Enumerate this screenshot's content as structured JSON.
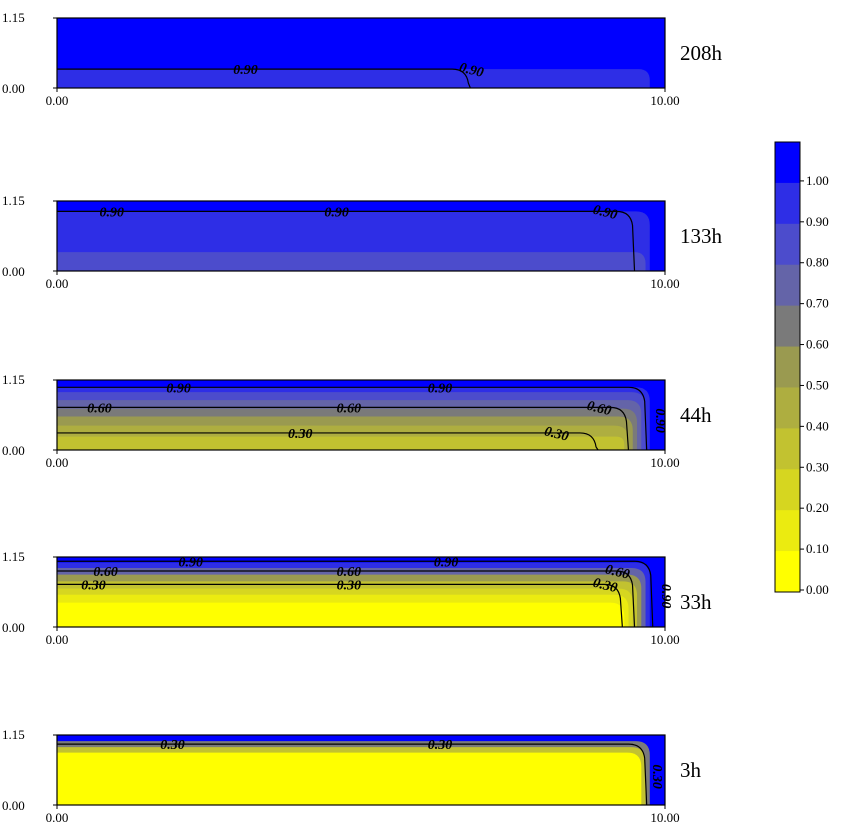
{
  "panel_axes": {
    "x_ticks": [
      "0.00",
      "10.00"
    ],
    "y_ticks": [
      "0.00",
      "1.15"
    ]
  },
  "legend": {
    "labels": [
      "1.00",
      "0.90",
      "0.80",
      "0.70",
      "0.60",
      "0.50",
      "0.40",
      "0.30",
      "0.20",
      "0.10",
      "0.00"
    ]
  },
  "colors": {
    "scale": [
      "#ffff00",
      "#ebeb10",
      "#d6d620",
      "#c2c230",
      "#aeae40",
      "#9a9a50",
      "#7a7a7a",
      "#6464a8",
      "#4c4ccc",
      "#2e2ee6",
      "#0000ff"
    ],
    "line": "#000000"
  },
  "chart_data": [
    {
      "type": "heatmap",
      "time_label": "208h",
      "xlim": [
        0,
        10
      ],
      "ylim": [
        0,
        1.15
      ],
      "bands": [
        {
          "level": 0.9,
          "y": 0.31
        },
        {
          "level": 1.0,
          "y": 1.15
        }
      ],
      "contours": [
        {
          "level": 0.9,
          "y": 0.31,
          "x_end": 6.7,
          "labels": [
            {
              "text": "0.90",
              "x": 3.1
            },
            {
              "text": "0.90",
              "x": 6.8,
              "slant": true
            }
          ]
        }
      ]
    },
    {
      "type": "heatmap",
      "time_label": "133h",
      "xlim": [
        0,
        10
      ],
      "ylim": [
        0,
        1.15
      ],
      "bands": [
        {
          "level": 0.8,
          "y": 0.31
        },
        {
          "level": 0.9,
          "y": 0.98
        },
        {
          "level": 1.0,
          "y": 1.15
        }
      ],
      "contours": [
        {
          "level": 0.9,
          "y": 0.98,
          "x_end": 9.4,
          "labels": [
            {
              "text": "0.90",
              "x": 0.9
            },
            {
              "text": "0.90",
              "x": 4.6
            },
            {
              "text": "0.90",
              "x": 9.0,
              "slant": true
            }
          ]
        }
      ]
    },
    {
      "type": "heatmap",
      "time_label": "44h",
      "xlim": [
        0,
        10
      ],
      "ylim": [
        0,
        1.15
      ],
      "bands": [
        {
          "level": 0.3,
          "y": 0.22
        },
        {
          "level": 0.4,
          "y": 0.4
        },
        {
          "level": 0.5,
          "y": 0.55
        },
        {
          "level": 0.6,
          "y": 0.68
        },
        {
          "level": 0.7,
          "y": 0.82
        },
        {
          "level": 0.8,
          "y": 0.95
        },
        {
          "level": 0.9,
          "y": 1.03
        },
        {
          "level": 1.0,
          "y": 1.15
        }
      ],
      "contours": [
        {
          "level": 0.9,
          "y": 1.03,
          "x_end": 9.6,
          "labels": [
            {
              "text": "0.90",
              "x": 2.0
            },
            {
              "text": "0.90",
              "x": 6.3
            },
            {
              "text": "0.90",
              "x": 9.85,
              "vertical": true
            }
          ]
        },
        {
          "level": 0.6,
          "y": 0.7,
          "x_end": 9.3,
          "labels": [
            {
              "text": "0.60",
              "x": 0.7
            },
            {
              "text": "0.60",
              "x": 4.8
            },
            {
              "text": "0.60",
              "x": 8.9,
              "slant": true
            }
          ]
        },
        {
          "level": 0.3,
          "y": 0.28,
          "x_end": 8.8,
          "labels": [
            {
              "text": "0.30",
              "x": 4.0
            },
            {
              "text": "0.30",
              "x": 8.2,
              "slant": true
            }
          ]
        }
      ]
    },
    {
      "type": "heatmap",
      "time_label": "33h",
      "xlim": [
        0,
        10
      ],
      "ylim": [
        0,
        1.15
      ],
      "bands": [
        {
          "level": 0.0,
          "y": 0.4
        },
        {
          "level": 0.1,
          "y": 0.53
        },
        {
          "level": 0.2,
          "y": 0.63
        },
        {
          "level": 0.3,
          "y": 0.75
        },
        {
          "level": 0.5,
          "y": 0.86
        },
        {
          "level": 0.7,
          "y": 0.97
        },
        {
          "level": 0.9,
          "y": 1.06
        },
        {
          "level": 1.0,
          "y": 1.15
        }
      ],
      "contours": [
        {
          "level": 0.9,
          "y": 1.08,
          "x_end": 9.7,
          "labels": [
            {
              "text": "0.90",
              "x": 2.2
            },
            {
              "text": "0.90",
              "x": 6.4
            },
            {
              "text": "0.90",
              "x": 9.95,
              "vertical": true
            }
          ]
        },
        {
          "level": 0.6,
          "y": 0.92,
          "x_end": 9.4,
          "labels": [
            {
              "text": "0.60",
              "x": 0.8
            },
            {
              "text": "0.60",
              "x": 4.8
            },
            {
              "text": "0.60",
              "x": 9.2,
              "slant": true
            }
          ]
        },
        {
          "level": 0.3,
          "y": 0.7,
          "x_end": 9.2,
          "labels": [
            {
              "text": "0.30",
              "x": 0.6
            },
            {
              "text": "0.30",
              "x": 4.8
            },
            {
              "text": "0.30",
              "x": 9.0,
              "slant": true
            }
          ]
        }
      ]
    },
    {
      "type": "heatmap",
      "time_label": "3h",
      "xlim": [
        0,
        10
      ],
      "ylim": [
        0,
        1.15
      ],
      "bands": [
        {
          "level": 0.0,
          "y": 0.86
        },
        {
          "level": 0.3,
          "y": 0.95
        },
        {
          "level": 0.6,
          "y": 1.05
        },
        {
          "level": 1.0,
          "y": 1.15
        }
      ],
      "contours": [
        {
          "level": 0.3,
          "y": 1.0,
          "x_end": 9.6,
          "labels": [
            {
              "text": "0.30",
              "x": 1.9
            },
            {
              "text": "0.30",
              "x": 6.3
            },
            {
              "text": "0.30",
              "x": 9.8,
              "vertical": true
            }
          ]
        }
      ]
    }
  ]
}
